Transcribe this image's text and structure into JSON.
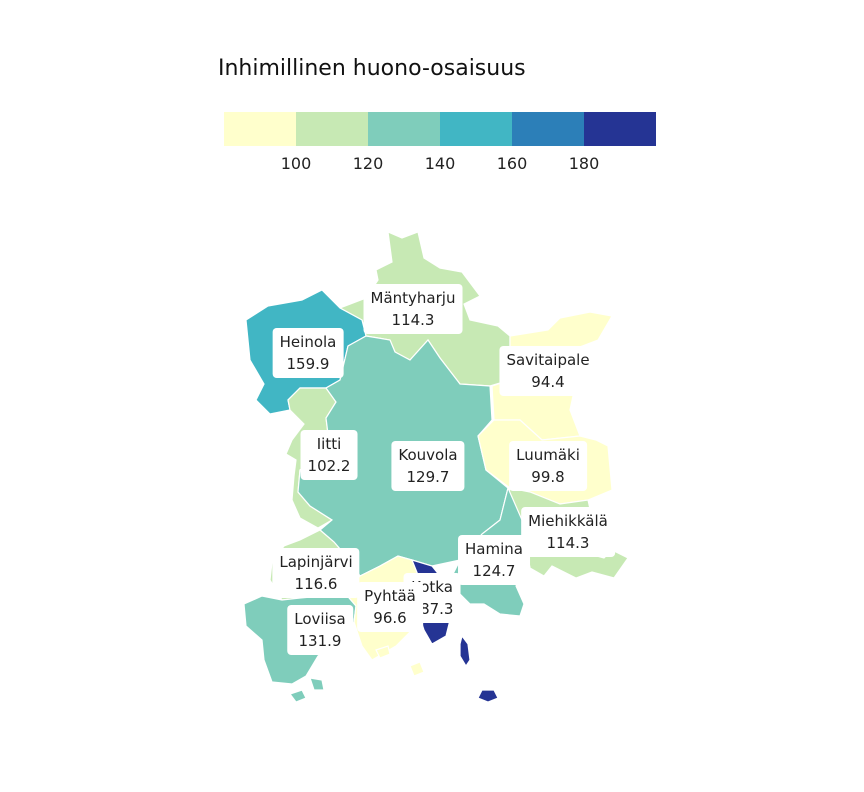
{
  "legend": {
    "title": "Inhimillinen huono-osaisuus",
    "ticks": [
      "100",
      "120",
      "140",
      "160",
      "180"
    ],
    "colors": [
      "#ffffcc",
      "#c7e9b4",
      "#7fcdbb",
      "#41b6c4",
      "#2c7fb8",
      "#253494"
    ]
  },
  "municipalities": [
    {
      "name": "Mäntyharju",
      "value": "114.3",
      "color": "#c7e9b4"
    },
    {
      "name": "Heinola",
      "value": "159.9",
      "color": "#41b6c4"
    },
    {
      "name": "Savitaipale",
      "value": "94.4",
      "color": "#ffffcc"
    },
    {
      "name": "Iitti",
      "value": "102.2",
      "color": "#c7e9b4"
    },
    {
      "name": "Kouvola",
      "value": "129.7",
      "color": "#7fcdbb"
    },
    {
      "name": "Luumäki",
      "value": "99.8",
      "color": "#ffffcc"
    },
    {
      "name": "Miehikkälä",
      "value": "114.3",
      "color": "#c7e9b4"
    },
    {
      "name": "Hamina",
      "value": "124.7",
      "color": "#7fcdbb"
    },
    {
      "name": "Lapinjärvi",
      "value": "116.6",
      "color": "#c7e9b4"
    },
    {
      "name": "Kotka",
      "value": "187.3",
      "color": "#253494"
    },
    {
      "name": "Pyhtää",
      "value": "96.6",
      "color": "#ffffcc"
    },
    {
      "name": "Loviisa",
      "value": "131.9",
      "color": "#7fcdbb"
    }
  ]
}
